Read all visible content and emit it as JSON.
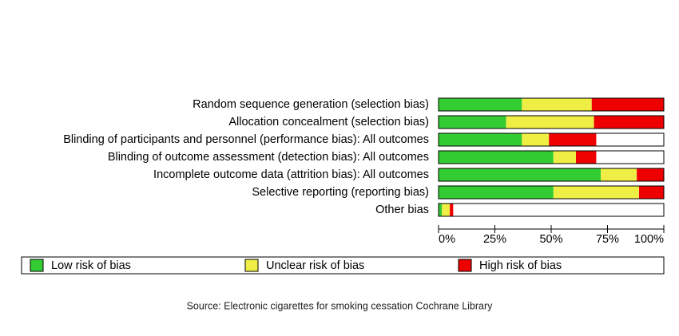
{
  "chart_data": {
    "type": "stacked-barh",
    "categories": [
      "Random sequence generation (selection bias)",
      "Allocation concealment (selection bias)",
      "Blinding of participants and personnel (performance bias): All outcomes",
      "Blinding of outcome assessment (detection bias): All outcomes",
      "Incomplete outcome data (attrition bias): All outcomes",
      "Selective reporting (reporting bias)",
      "Other bias"
    ],
    "series": [
      {
        "name": "Low risk of bias",
        "color": "#33cc33",
        "values": [
          37,
          30,
          37,
          51,
          72,
          51,
          1.5
        ]
      },
      {
        "name": "Unclear risk of bias",
        "color": "#eeee44",
        "values": [
          31,
          39,
          12,
          10,
          16,
          38,
          3.5
        ]
      },
      {
        "name": "High risk of bias",
        "color": "#ee0000",
        "values": [
          32,
          31,
          21,
          9,
          12,
          11,
          1.5
        ]
      }
    ],
    "xlim": [
      0,
      100
    ],
    "xticks": [
      {
        "value": 0,
        "label": "0%"
      },
      {
        "value": 25,
        "label": "25%"
      },
      {
        "value": 50,
        "label": "50%"
      },
      {
        "value": 75,
        "label": "75%"
      },
      {
        "value": 100,
        "label": "100%"
      }
    ],
    "legend": "bottom",
    "source": "Source: Electronic cigarettes for smoking cessation Cochrane Library"
  }
}
